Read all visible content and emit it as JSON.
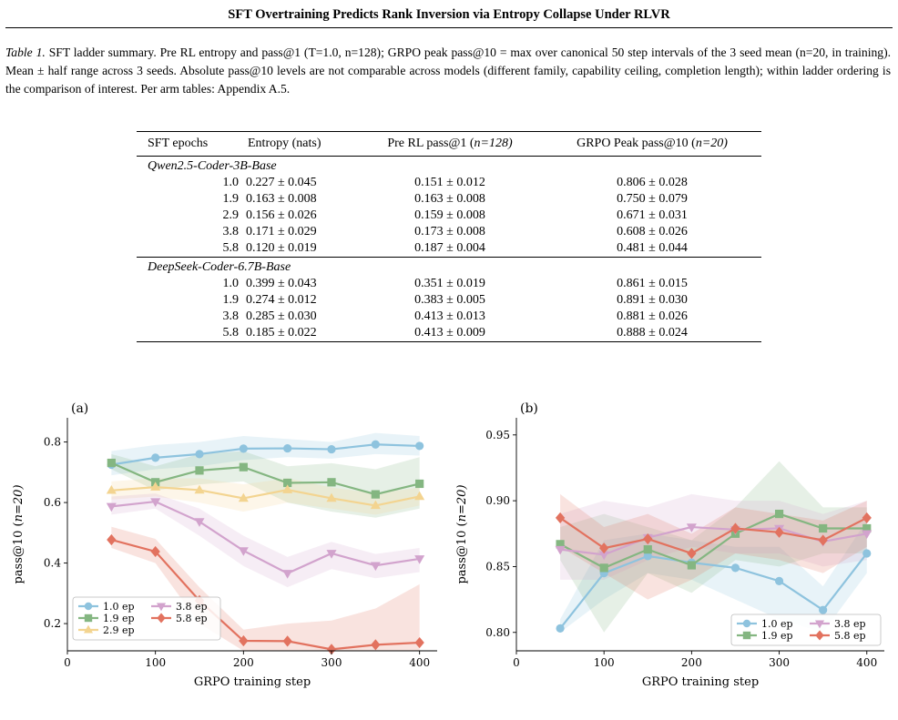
{
  "header": {
    "title": "SFT Overtraining Predicts Rank Inversion via Entropy Collapse Under RLVR"
  },
  "caption": {
    "label": "Table 1.",
    "text": "SFT ladder summary. Pre RL entropy and pass@1 (T=1.0, n=128); GRPO peak pass@10 = max over canonical 50 step intervals of the 3 seed mean (n=20, in training). Mean ± half range across 3 seeds. Absolute pass@10 levels are not comparable across models (different family, capability ceiling, completion length); within ladder ordering is the comparison of interest. Per arm tables: Appendix A.5."
  },
  "table": {
    "columns": [
      "SFT epochs",
      "Entropy (nats)",
      "Pre RL pass@1 (",
      "GRPO Peak pass@10 ("
    ],
    "col_n": [
      "n=128)",
      "n=20)"
    ],
    "groups": [
      {
        "name": "Qwen2.5-Coder-3B-Base",
        "rows": [
          {
            "epochs": "1.0",
            "entropy": "0.227 ± 0.045",
            "pass1": "0.151 ± 0.012",
            "peak10": "0.806 ± 0.028"
          },
          {
            "epochs": "1.9",
            "entropy": "0.163 ± 0.008",
            "pass1": "0.163 ± 0.008",
            "peak10": "0.750 ± 0.079"
          },
          {
            "epochs": "2.9",
            "entropy": "0.156 ± 0.026",
            "pass1": "0.159 ± 0.008",
            "peak10": "0.671 ± 0.031"
          },
          {
            "epochs": "3.8",
            "entropy": "0.171 ± 0.029",
            "pass1": "0.173 ± 0.008",
            "peak10": "0.608 ± 0.026"
          },
          {
            "epochs": "5.8",
            "entropy": "0.120 ± 0.019",
            "pass1": "0.187 ± 0.004",
            "peak10": "0.481 ± 0.044"
          }
        ]
      },
      {
        "name": "DeepSeek-Coder-6.7B-Base",
        "rows": [
          {
            "epochs": "1.0",
            "entropy": "0.399 ± 0.043",
            "pass1": "0.351 ± 0.019",
            "peak10": "0.861 ± 0.015"
          },
          {
            "epochs": "1.9",
            "entropy": "0.274 ± 0.012",
            "pass1": "0.383 ± 0.005",
            "peak10": "0.891 ± 0.030"
          },
          {
            "epochs": "3.8",
            "entropy": "0.285 ± 0.030",
            "pass1": "0.413 ± 0.013",
            "peak10": "0.881 ± 0.026"
          },
          {
            "epochs": "5.8",
            "entropy": "0.185 ± 0.022",
            "pass1": "0.413 ± 0.009",
            "peak10": "0.888 ± 0.024"
          }
        ]
      }
    ]
  },
  "chart_data": [
    {
      "type": "line",
      "panel_label": "(a)",
      "title": "",
      "xlabel": "GRPO training step",
      "ylabel_main": "pass@10 (",
      "ylabel_n": "n=20)",
      "xlim": [
        0,
        420
      ],
      "ylim": [
        0.11,
        0.88
      ],
      "xticks": [
        0,
        100,
        200,
        300,
        400
      ],
      "yticks": [
        0.2,
        0.4,
        0.6,
        0.8
      ],
      "ytick_labels": [
        "0.2",
        "0.4",
        "0.6",
        "0.8"
      ],
      "legend_position": "lower-left",
      "legend_columns": 2,
      "x": [
        50,
        100,
        150,
        200,
        250,
        300,
        350,
        400
      ],
      "series": [
        {
          "name": "1.0 ep",
          "color": "#8ec3de",
          "marker": "circle",
          "values": [
            0.725,
            0.748,
            0.76,
            0.778,
            0.779,
            0.776,
            0.792,
            0.787
          ],
          "band_low": [
            0.69,
            0.71,
            0.72,
            0.74,
            0.75,
            0.745,
            0.76,
            0.755
          ],
          "band_high": [
            0.77,
            0.79,
            0.8,
            0.82,
            0.81,
            0.8,
            0.83,
            0.82
          ]
        },
        {
          "name": "1.9 ep",
          "color": "#84b681",
          "marker": "square",
          "values": [
            0.731,
            0.667,
            0.706,
            0.717,
            0.665,
            0.667,
            0.627,
            0.662
          ],
          "band_low": [
            0.71,
            0.64,
            0.66,
            0.67,
            0.6,
            0.57,
            0.55,
            0.58
          ],
          "band_high": [
            0.76,
            0.72,
            0.76,
            0.77,
            0.72,
            0.73,
            0.71,
            0.75
          ]
        },
        {
          "name": "2.9 ep",
          "color": "#f3d490",
          "marker": "triangle-up",
          "values": [
            0.64,
            0.651,
            0.641,
            0.614,
            0.642,
            0.614,
            0.59,
            0.62
          ],
          "band_low": [
            0.61,
            0.62,
            0.6,
            0.57,
            0.6,
            0.58,
            0.56,
            0.59
          ],
          "band_high": [
            0.67,
            0.68,
            0.68,
            0.66,
            0.68,
            0.65,
            0.63,
            0.65
          ]
        },
        {
          "name": "3.8 ep",
          "color": "#d2a3cd",
          "marker": "triangle-down",
          "values": [
            0.587,
            0.603,
            0.537,
            0.441,
            0.366,
            0.432,
            0.392,
            0.414
          ],
          "band_low": [
            0.56,
            0.58,
            0.49,
            0.39,
            0.32,
            0.38,
            0.35,
            0.37
          ],
          "band_high": [
            0.62,
            0.63,
            0.58,
            0.49,
            0.42,
            0.47,
            0.43,
            0.45
          ]
        },
        {
          "name": "5.8 ep",
          "color": "#e2725f",
          "marker": "diamond",
          "values": [
            0.477,
            0.438,
            0.276,
            0.143,
            0.142,
            0.115,
            0.13,
            0.137
          ],
          "band_low": [
            0.45,
            0.4,
            0.2,
            0.11,
            0.11,
            0.11,
            0.11,
            0.11
          ],
          "band_high": [
            0.52,
            0.48,
            0.32,
            0.18,
            0.2,
            0.21,
            0.25,
            0.33
          ]
        }
      ]
    },
    {
      "type": "line",
      "panel_label": "(b)",
      "title": "",
      "xlabel": "GRPO training step",
      "ylabel_main": "pass@10 (",
      "ylabel_n": "n=20)",
      "xlim": [
        0,
        420
      ],
      "ylim": [
        0.786,
        0.963
      ],
      "xticks": [
        0,
        100,
        200,
        300,
        400
      ],
      "yticks": [
        0.8,
        0.85,
        0.9,
        0.95
      ],
      "ytick_labels": [
        "0.80",
        "0.85",
        "0.90",
        "0.95"
      ],
      "legend_position": "lower-right",
      "legend_columns": 2,
      "x": [
        50,
        100,
        150,
        200,
        250,
        300,
        350,
        400
      ],
      "series": [
        {
          "name": "1.0 ep",
          "color": "#8ec3de",
          "marker": "circle",
          "values": [
            0.803,
            0.845,
            0.858,
            0.853,
            0.849,
            0.839,
            0.817,
            0.86
          ],
          "band_low": [
            0.8,
            0.825,
            0.845,
            0.84,
            0.825,
            0.81,
            0.8,
            0.845
          ],
          "band_high": [
            0.81,
            0.87,
            0.875,
            0.87,
            0.865,
            0.865,
            0.835,
            0.885
          ]
        },
        {
          "name": "1.9 ep",
          "color": "#84b681",
          "marker": "square",
          "values": [
            0.867,
            0.849,
            0.863,
            0.851,
            0.875,
            0.89,
            0.879,
            0.879
          ],
          "band_low": [
            0.855,
            0.8,
            0.845,
            0.83,
            0.855,
            0.85,
            0.86,
            0.86
          ],
          "band_high": [
            0.88,
            0.89,
            0.88,
            0.87,
            0.895,
            0.93,
            0.895,
            0.895
          ]
        },
        {
          "name": "3.8 ep",
          "color": "#d2a3cd",
          "marker": "triangle-down",
          "values": [
            0.863,
            0.859,
            0.872,
            0.88,
            0.878,
            0.879,
            0.869,
            0.875
          ],
          "band_low": [
            0.84,
            0.84,
            0.855,
            0.865,
            0.86,
            0.86,
            0.85,
            0.855
          ],
          "band_high": [
            0.89,
            0.9,
            0.895,
            0.905,
            0.9,
            0.9,
            0.89,
            0.9
          ]
        },
        {
          "name": "5.8 ep",
          "color": "#e2725f",
          "marker": "diamond",
          "values": [
            0.887,
            0.864,
            0.871,
            0.86,
            0.879,
            0.876,
            0.87,
            0.887
          ],
          "band_low": [
            0.865,
            0.845,
            0.825,
            0.84,
            0.86,
            0.855,
            0.845,
            0.865
          ],
          "band_high": [
            0.905,
            0.88,
            0.89,
            0.875,
            0.895,
            0.89,
            0.885,
            0.9
          ]
        }
      ]
    }
  ]
}
